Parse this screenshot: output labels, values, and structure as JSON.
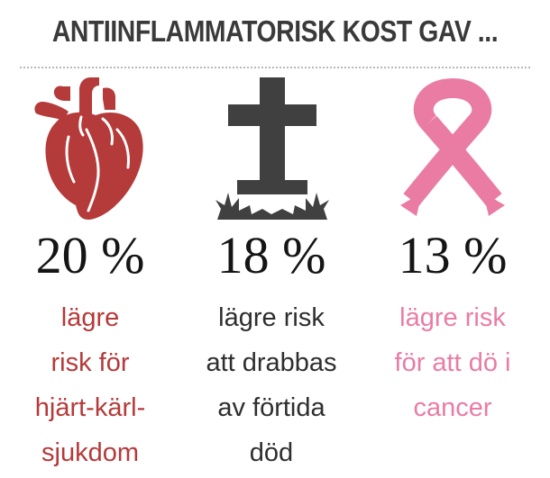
{
  "title": "ANTIINFLAMMATORISK KOST GAV ...",
  "colors": {
    "heart": "#b53a3a",
    "cross": "#404040",
    "ribbon": "#ea7ca4",
    "title": "#3a3a3a"
  },
  "items": [
    {
      "icon": "heart-icon",
      "value": "20 %",
      "lines": [
        "lägre",
        "risk för",
        "hjärt-kärl-",
        "sjukdom"
      ]
    },
    {
      "icon": "grave-cross-icon",
      "value": "18 %",
      "lines": [
        "lägre risk",
        "att drabbas",
        "av förtida",
        "död"
      ]
    },
    {
      "icon": "cancer-ribbon-icon",
      "value": "13 %",
      "lines": [
        "lägre risk",
        "för att dö i",
        "cancer"
      ]
    }
  ]
}
